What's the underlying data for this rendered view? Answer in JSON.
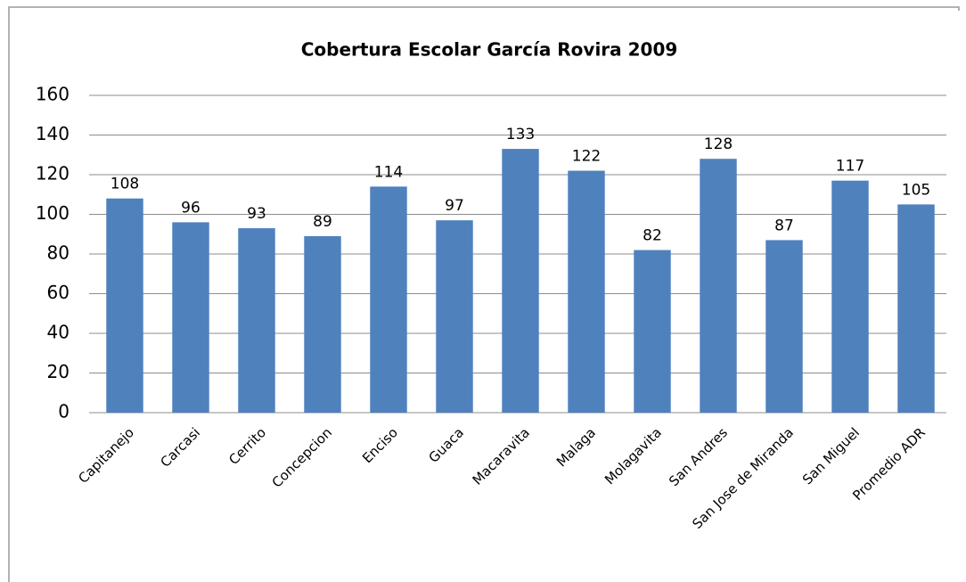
{
  "chart_data": {
    "type": "bar",
    "title": "Cobertura Escolar García Rovira 2009",
    "categories": [
      "Capitanejo",
      "Carcasi",
      "Cerrito",
      "Concepcion",
      "Enciso",
      "Guaca",
      "Macaravita",
      "Malaga",
      "Molagavita",
      "San Andres",
      "San Jose de Miranda",
      "San Miguel",
      "Promedio ADR"
    ],
    "values": [
      108,
      96,
      93,
      89,
      114,
      97,
      133,
      122,
      82,
      128,
      87,
      117,
      105
    ],
    "color": "#4f81bd",
    "ylim": [
      0,
      160
    ],
    "yticks": [
      0,
      20,
      40,
      60,
      80,
      100,
      120,
      140,
      160
    ],
    "grid": true
  }
}
